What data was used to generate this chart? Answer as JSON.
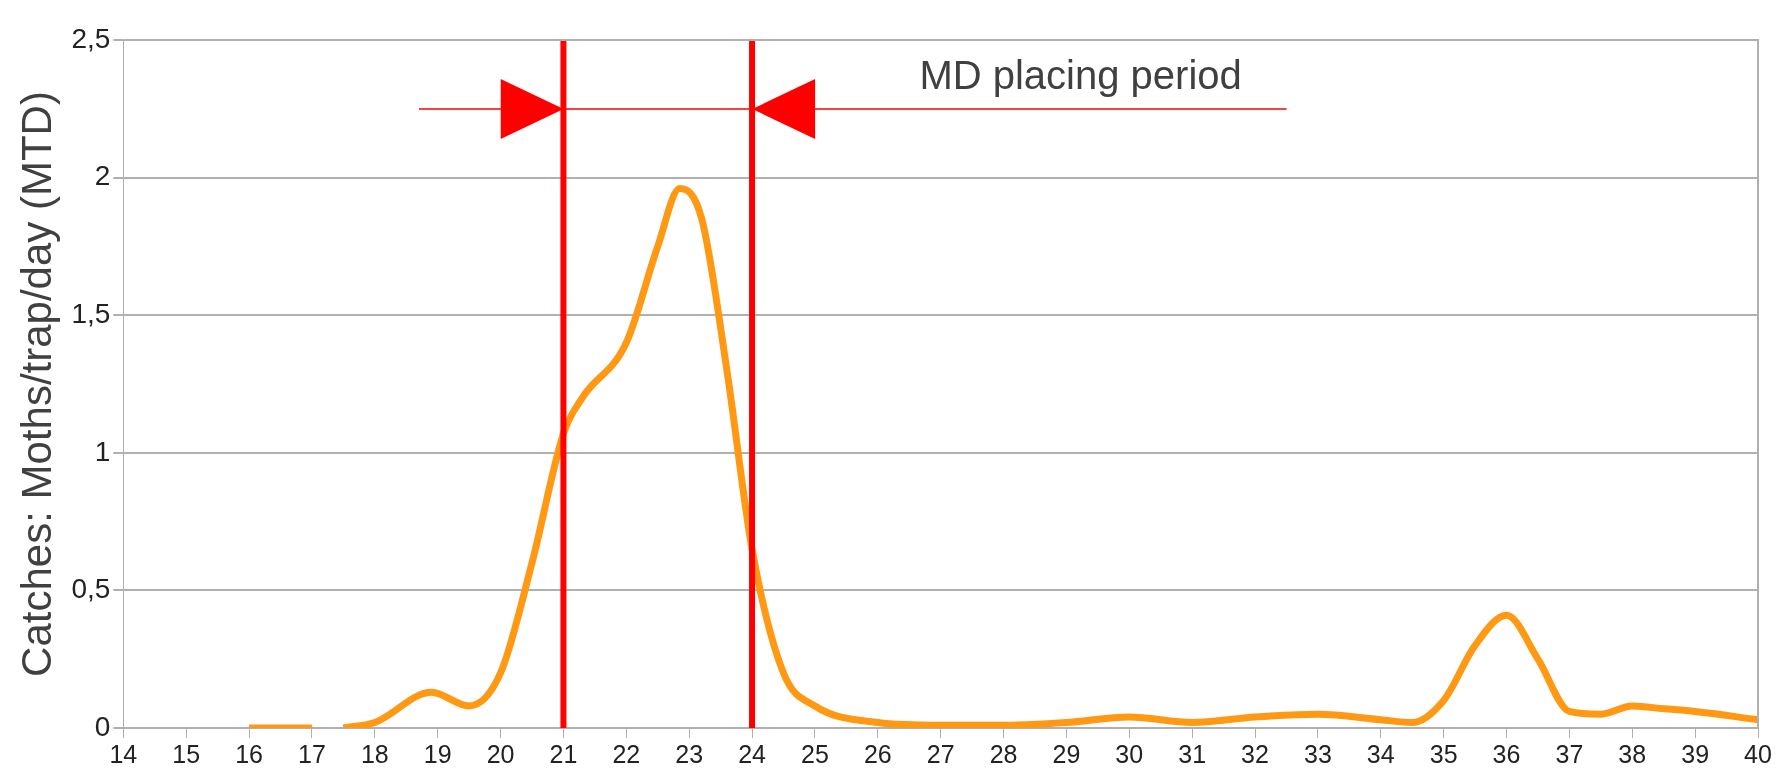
{
  "chart_data": {
    "type": "line",
    "ylabel": "Catches: Moths/trap/day (MTD)",
    "xlim": [
      14,
      40
    ],
    "xticks": [
      14,
      15,
      16,
      17,
      18,
      19,
      20,
      21,
      22,
      23,
      24,
      25,
      26,
      27,
      28,
      29,
      30,
      31,
      32,
      33,
      34,
      35,
      36,
      37,
      38,
      39,
      40
    ],
    "ylim": [
      0,
      2.5
    ],
    "yticks": [
      0,
      {
        "value": 0.5,
        "label": "0,5"
      },
      1,
      {
        "value": 1.5,
        "label": "1,5"
      },
      2,
      {
        "value": 2.5,
        "label": "2,5"
      }
    ],
    "grid": "y",
    "legend": false,
    "marker": "none",
    "series": [
      {
        "color": "#ff9914",
        "x": [
          16,
          17,
          17.25,
          17.5,
          18,
          18.9,
          19.5,
          20,
          20.5,
          21,
          21.3,
          22,
          22.5,
          22.85,
          23.2,
          23.6,
          24,
          24.5,
          25,
          26,
          27,
          28,
          29,
          30,
          31,
          32,
          33,
          34,
          34.5,
          35,
          35.5,
          36,
          36.5,
          37,
          37.5,
          38,
          38.5,
          39,
          40
        ],
        "values": [
          0,
          0,
          null,
          0,
          0.02,
          0.13,
          0.08,
          0.2,
          0.6,
          1.07,
          1.2,
          1.4,
          1.75,
          1.96,
          1.85,
          1.3,
          0.65,
          0.2,
          0.08,
          0.02,
          0.01,
          0.01,
          0.02,
          0.04,
          0.02,
          0.04,
          0.05,
          0.03,
          0.02,
          0.1,
          0.3,
          0.41,
          0.25,
          0.06,
          0.05,
          0.08,
          0.07,
          0.06,
          0.03
        ]
      }
    ],
    "ref_lines": [
      {
        "axis": "x",
        "value": 21,
        "color": "#ff0000"
      },
      {
        "axis": "x",
        "value": 24,
        "color": "#ff0000"
      }
    ],
    "annotations": [
      "MD placing period"
    ]
  }
}
